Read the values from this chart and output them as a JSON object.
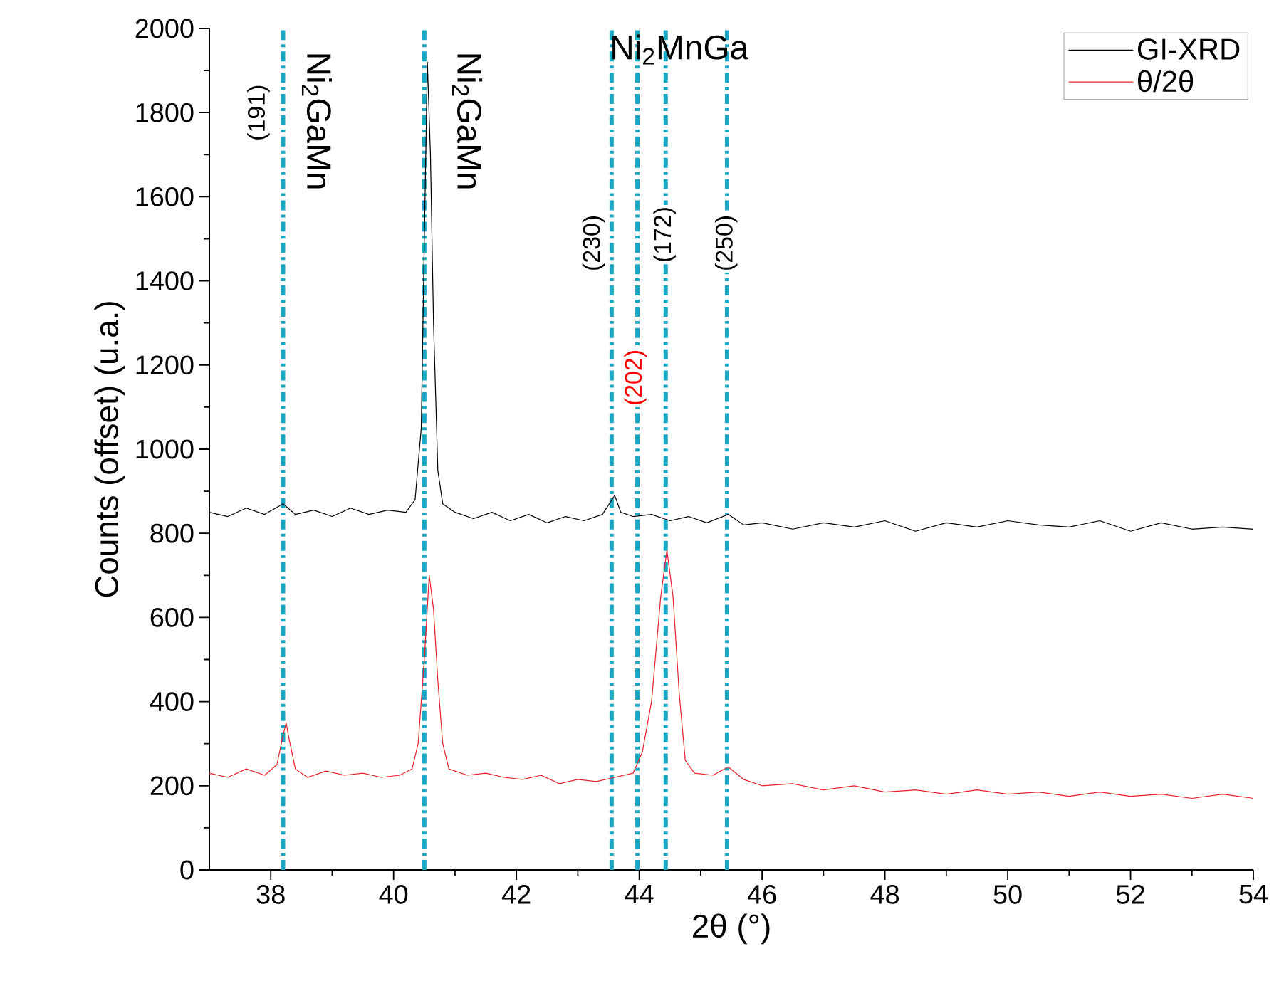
{
  "chart_data": {
    "type": "line",
    "xlabel": "2θ (°)",
    "ylabel": "Counts (offset) (u.a.)",
    "xlim": [
      37,
      54
    ],
    "xticks": [
      38,
      40,
      42,
      44,
      46,
      48,
      50,
      52,
      54
    ],
    "ylim": [
      0,
      2000
    ],
    "yticks": [
      0,
      200,
      400,
      600,
      800,
      1000,
      1200,
      1400,
      1600,
      1800,
      2000
    ],
    "grid": false,
    "legend": "top right",
    "line_style": "solid",
    "series": [
      {
        "name": "GI-XRD",
        "color": "#000000",
        "x": [
          37.0,
          37.3,
          37.6,
          37.9,
          38.2,
          38.4,
          38.7,
          39.0,
          39.3,
          39.6,
          39.9,
          40.2,
          40.35,
          40.45,
          40.5,
          40.55,
          40.6,
          40.65,
          40.72,
          40.8,
          41.0,
          41.3,
          41.6,
          41.9,
          42.2,
          42.5,
          42.8,
          43.1,
          43.4,
          43.6,
          43.7,
          43.9,
          44.2,
          44.5,
          44.8,
          45.1,
          45.45,
          45.7,
          46.0,
          46.5,
          47.0,
          47.5,
          48.0,
          48.5,
          49.0,
          49.5,
          50.0,
          50.5,
          51.0,
          51.5,
          52.0,
          52.5,
          53.0,
          53.5,
          54.0
        ],
        "values": [
          850,
          840,
          860,
          845,
          870,
          845,
          855,
          840,
          860,
          845,
          855,
          850,
          880,
          1050,
          1500,
          1920,
          1700,
          1300,
          950,
          870,
          850,
          835,
          850,
          830,
          845,
          825,
          840,
          830,
          845,
          890,
          850,
          840,
          845,
          830,
          840,
          825,
          845,
          820,
          825,
          810,
          825,
          815,
          830,
          805,
          825,
          815,
          830,
          820,
          815,
          830,
          805,
          825,
          810,
          815,
          810
        ]
      },
      {
        "name": "θ/2θ",
        "color": "#e8202a",
        "x": [
          37.0,
          37.3,
          37.6,
          37.9,
          38.1,
          38.2,
          38.25,
          38.3,
          38.4,
          38.6,
          38.9,
          39.2,
          39.5,
          39.8,
          40.1,
          40.3,
          40.4,
          40.5,
          40.58,
          40.65,
          40.72,
          40.8,
          40.9,
          41.2,
          41.5,
          41.8,
          42.1,
          42.4,
          42.7,
          43.0,
          43.3,
          43.6,
          43.9,
          44.05,
          44.2,
          44.35,
          44.45,
          44.55,
          44.65,
          44.75,
          44.9,
          45.2,
          45.45,
          45.7,
          46.0,
          46.5,
          47.0,
          47.5,
          48.0,
          48.5,
          49.0,
          49.5,
          50.0,
          50.5,
          51.0,
          51.5,
          52.0,
          52.5,
          53.0,
          53.5,
          54.0
        ],
        "values": [
          230,
          220,
          240,
          225,
          250,
          320,
          350,
          310,
          240,
          220,
          235,
          225,
          230,
          220,
          225,
          240,
          300,
          500,
          700,
          620,
          450,
          300,
          240,
          225,
          230,
          220,
          215,
          225,
          205,
          215,
          210,
          220,
          230,
          280,
          400,
          650,
          760,
          650,
          420,
          260,
          230,
          225,
          245,
          215,
          200,
          205,
          190,
          200,
          185,
          190,
          180,
          190,
          180,
          185,
          175,
          185,
          175,
          180,
          170,
          180,
          170
        ]
      }
    ],
    "ref_lines": [
      {
        "axis": "x",
        "value": 38.2,
        "color": "#1aa7c4",
        "line_style": "dashdot"
      },
      {
        "axis": "x",
        "value": 40.5,
        "color": "#1aa7c4",
        "line_style": "dashdot"
      },
      {
        "axis": "x",
        "value": 43.55,
        "color": "#1aa7c4",
        "line_style": "dashdot"
      },
      {
        "axis": "x",
        "value": 43.97,
        "color": "#1aa7c4",
        "line_style": "dashdot"
      },
      {
        "axis": "x",
        "value": 44.43,
        "color": "#1aa7c4",
        "line_style": "dashdot"
      },
      {
        "axis": "x",
        "value": 45.43,
        "color": "#1aa7c4",
        "line_style": "dashdot"
      }
    ],
    "annotations": [
      "(191)",
      "Ni$_{2}$GaMn",
      "Ni$_{2}$GaMn",
      "Ni$_{2}$MnGa",
      "(230)",
      "(202)",
      "(172)",
      "(250)"
    ]
  }
}
